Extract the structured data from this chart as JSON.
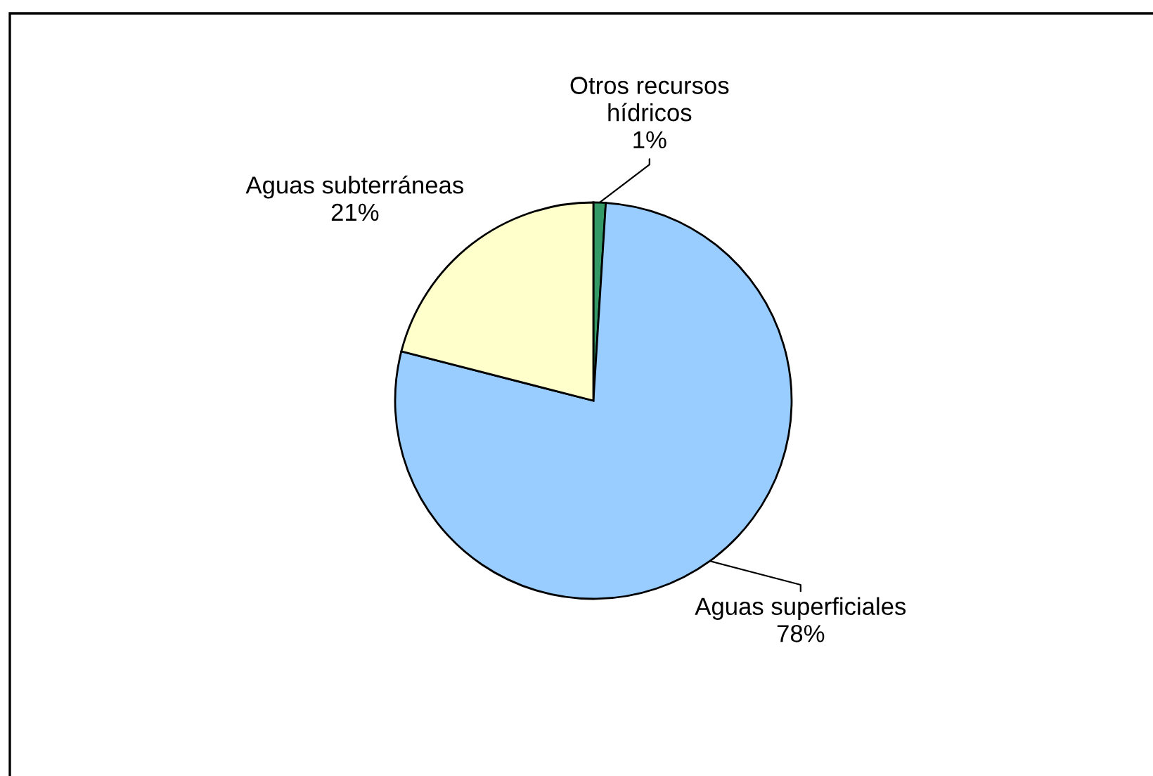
{
  "chart_data": {
    "type": "pie",
    "categories": [
      "Otros recursos hídricos",
      "Aguas superficiales",
      "Aguas subterráneas"
    ],
    "values": [
      1,
      78,
      21
    ],
    "colors": [
      "#339966",
      "#99ccff",
      "#ffffcc"
    ],
    "value_labels": [
      "1%",
      "78%",
      "21%"
    ]
  }
}
